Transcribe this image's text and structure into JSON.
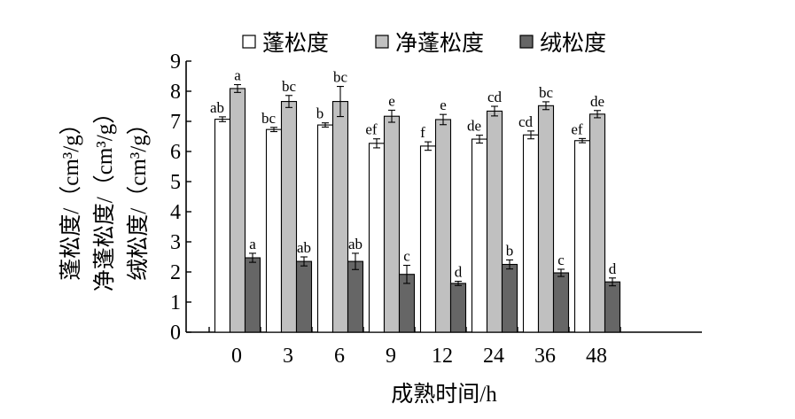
{
  "chart_data": {
    "type": "bar",
    "xlabel": "成熟时间/h",
    "ylabel_lines": [
      "蓬松度/（cm³/g）",
      "净蓬松度/（cm³/g）",
      "绒松度/（cm³/g）"
    ],
    "ylim": [
      0,
      9
    ],
    "yticks": [
      0,
      1,
      2,
      3,
      4,
      5,
      6,
      7,
      8,
      9
    ],
    "categories": [
      "0",
      "3",
      "6",
      "9",
      "12",
      "24",
      "36",
      "48"
    ],
    "grid": false,
    "legend_position": "top",
    "series": [
      {
        "name": "蓬松度",
        "color": "#ffffff",
        "values": [
          7.07,
          6.73,
          6.88,
          6.27,
          6.18,
          6.41,
          6.55,
          6.36
        ],
        "errors": [
          0.08,
          0.07,
          0.07,
          0.15,
          0.14,
          0.13,
          0.13,
          0.07
        ],
        "labels": [
          "ab",
          "bc",
          "b",
          "ef",
          "f",
          "de",
          "cd",
          "ef"
        ]
      },
      {
        "name": "净蓬松度",
        "color": "#c0c0c0",
        "values": [
          8.09,
          7.66,
          7.66,
          7.17,
          7.06,
          7.34,
          7.52,
          7.24
        ],
        "errors": [
          0.13,
          0.2,
          0.5,
          0.2,
          0.17,
          0.16,
          0.13,
          0.12
        ],
        "labels": [
          "a",
          "bc",
          "bc",
          "e",
          "e",
          "cd",
          "bc",
          "de"
        ]
      },
      {
        "name": "绒松度",
        "color": "#666666",
        "values": [
          2.47,
          2.35,
          2.35,
          1.92,
          1.62,
          2.25,
          1.97,
          1.67
        ],
        "errors": [
          0.15,
          0.15,
          0.27,
          0.3,
          0.07,
          0.15,
          0.12,
          0.13
        ],
        "labels": [
          "a",
          "ab",
          "ab",
          "c",
          "d",
          "b",
          "c",
          "d"
        ]
      }
    ]
  }
}
